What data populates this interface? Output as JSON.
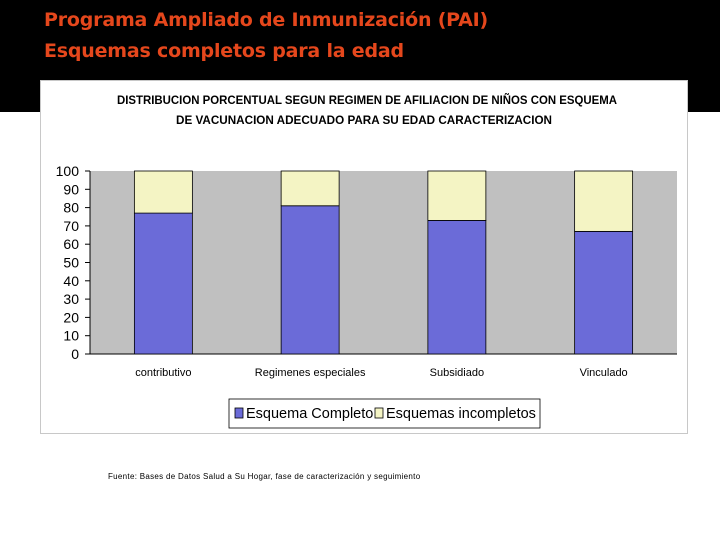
{
  "slide": {
    "title_line1": "Programa Ampliado de Inmunización (PAI)",
    "title_line2": "Esquemas completos para la edad",
    "source_note": "Fuente: Bases de Datos Salud a Su Hogar, fase de caracterización y seguimiento"
  },
  "colors": {
    "header_background": "#000000",
    "title_text": "#e5471c",
    "plot_background": "#c0c0c0",
    "complete_bar": "#6b6bd8",
    "incomplete_bar": "#f4f4c4"
  },
  "chart_data": {
    "type": "bar",
    "stacked": true,
    "title_line1": "DISTRIBUCION PORCENTUAL SEGUN REGIMEN DE AFILIACION DE NIÑOS CON ESQUEMA",
    "title_line2": "DE VACUNACION ADECUADO PARA SU EDAD CARACTERIZACION",
    "categories": [
      "contributivo",
      "Regimenes especiales",
      "Subsidiado",
      "Vinculado"
    ],
    "series": [
      {
        "name": "Esquema Completo",
        "values": [
          77,
          81,
          73,
          67
        ]
      },
      {
        "name": "Esquemas incompletos",
        "values": [
          23,
          19,
          27,
          33
        ]
      }
    ],
    "yticks": [
      "0",
      "10",
      "20",
      "30",
      "40",
      "50",
      "60",
      "70",
      "80",
      "90",
      "100"
    ],
    "ylim": [
      0,
      100
    ],
    "xlabel": "",
    "ylabel": "",
    "grid": false,
    "legend_position": "bottom"
  }
}
